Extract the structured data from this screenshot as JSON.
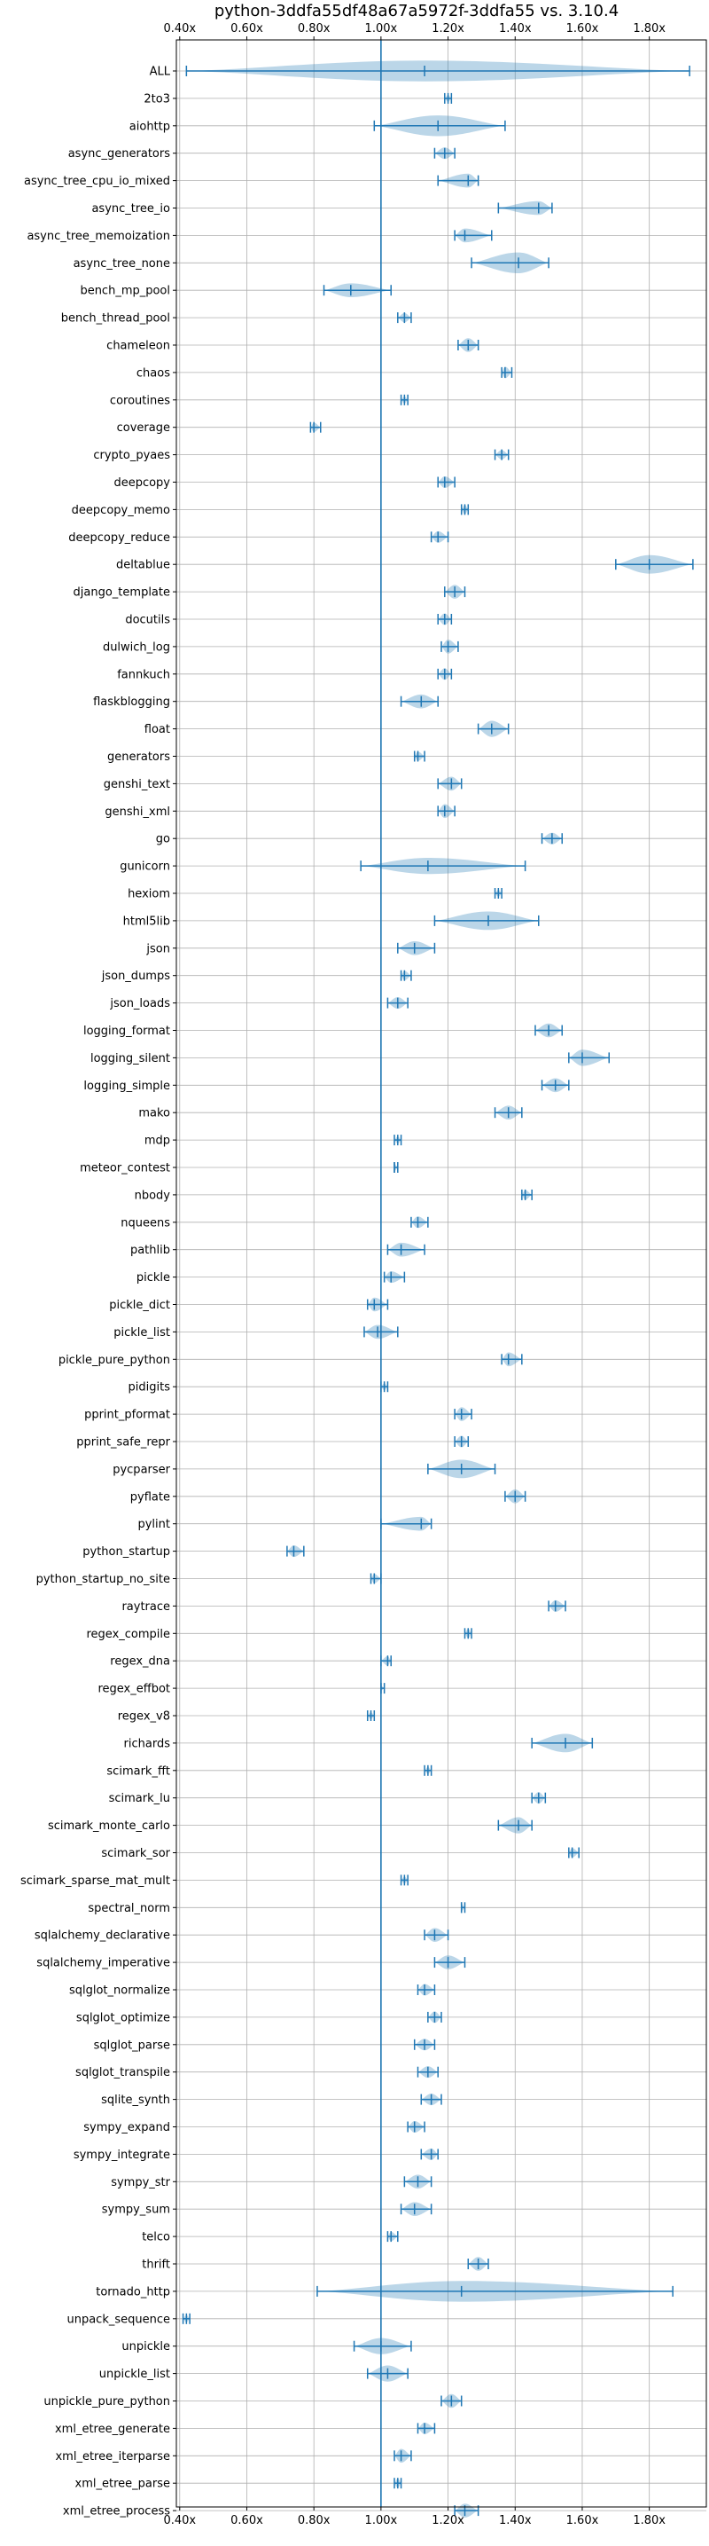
{
  "chart_data": {
    "type": "violin",
    "title": "python-3ddfa55df48a67a5972f-3ddfa55 vs. 3.10.4",
    "xlabel": "",
    "ylabel": "",
    "xlim": [
      0.39,
      1.97
    ],
    "xticks": [
      0.4,
      0.6,
      0.8,
      1.0,
      1.2,
      1.4,
      1.6,
      1.8
    ],
    "xtick_labels": [
      "0.40x",
      "0.60x",
      "0.80x",
      "1.00x",
      "1.20x",
      "1.40x",
      "1.60x",
      "1.80x"
    ],
    "reference_line": 1.0,
    "grid": true,
    "categories": [
      "ALL",
      "2to3",
      "aiohttp",
      "async_generators",
      "async_tree_cpu_io_mixed",
      "async_tree_io",
      "async_tree_memoization",
      "async_tree_none",
      "bench_mp_pool",
      "bench_thread_pool",
      "chameleon",
      "chaos",
      "coroutines",
      "coverage",
      "crypto_pyaes",
      "deepcopy",
      "deepcopy_memo",
      "deepcopy_reduce",
      "deltablue",
      "django_template",
      "docutils",
      "dulwich_log",
      "fannkuch",
      "flaskblogging",
      "float",
      "generators",
      "genshi_text",
      "genshi_xml",
      "go",
      "gunicorn",
      "hexiom",
      "html5lib",
      "json",
      "json_dumps",
      "json_loads",
      "logging_format",
      "logging_silent",
      "logging_simple",
      "mako",
      "mdp",
      "meteor_contest",
      "nbody",
      "nqueens",
      "pathlib",
      "pickle",
      "pickle_dict",
      "pickle_list",
      "pickle_pure_python",
      "pidigits",
      "pprint_pformat",
      "pprint_safe_repr",
      "pycparser",
      "pyflate",
      "pylint",
      "python_startup",
      "python_startup_no_site",
      "raytrace",
      "regex_compile",
      "regex_dna",
      "regex_effbot",
      "regex_v8",
      "richards",
      "scimark_fft",
      "scimark_lu",
      "scimark_monte_carlo",
      "scimark_sor",
      "scimark_sparse_mat_mult",
      "spectral_norm",
      "sqlalchemy_declarative",
      "sqlalchemy_imperative",
      "sqlglot_normalize",
      "sqlglot_optimize",
      "sqlglot_parse",
      "sqlglot_transpile",
      "sqlite_synth",
      "sympy_expand",
      "sympy_integrate",
      "sympy_str",
      "sympy_sum",
      "telco",
      "thrift",
      "tornado_http",
      "unpack_sequence",
      "unpickle",
      "unpickle_list",
      "unpickle_pure_python",
      "xml_etree_generate",
      "xml_etree_iterparse",
      "xml_etree_parse",
      "xml_etree_process"
    ],
    "series": [
      {
        "min": 0.42,
        "max": 1.92,
        "median": 1.13,
        "width": 0.9
      },
      {
        "min": 1.19,
        "max": 1.21,
        "median": 1.2,
        "width": 0.3
      },
      {
        "min": 0.98,
        "max": 1.37,
        "median": 1.17,
        "width": 0.9
      },
      {
        "min": 1.16,
        "max": 1.22,
        "median": 1.19,
        "width": 0.5
      },
      {
        "min": 1.17,
        "max": 1.29,
        "median": 1.26,
        "width": 0.6
      },
      {
        "min": 1.35,
        "max": 1.51,
        "median": 1.47,
        "width": 0.6
      },
      {
        "min": 1.22,
        "max": 1.33,
        "median": 1.25,
        "width": 0.6
      },
      {
        "min": 1.27,
        "max": 1.5,
        "median": 1.41,
        "width": 0.9
      },
      {
        "min": 0.83,
        "max": 1.03,
        "median": 0.91,
        "width": 0.6
      },
      {
        "min": 1.05,
        "max": 1.09,
        "median": 1.07,
        "width": 0.4
      },
      {
        "min": 1.23,
        "max": 1.29,
        "median": 1.26,
        "width": 0.6
      },
      {
        "min": 1.36,
        "max": 1.39,
        "median": 1.37,
        "width": 0.5
      },
      {
        "min": 1.06,
        "max": 1.08,
        "median": 1.07,
        "width": 0.3
      },
      {
        "min": 0.79,
        "max": 0.82,
        "median": 0.8,
        "width": 0.4
      },
      {
        "min": 1.34,
        "max": 1.38,
        "median": 1.36,
        "width": 0.4
      },
      {
        "min": 1.17,
        "max": 1.22,
        "median": 1.19,
        "width": 0.5
      },
      {
        "min": 1.24,
        "max": 1.26,
        "median": 1.25,
        "width": 0.4
      },
      {
        "min": 1.15,
        "max": 1.2,
        "median": 1.17,
        "width": 0.5
      },
      {
        "min": 1.7,
        "max": 1.93,
        "median": 1.8,
        "width": 0.8
      },
      {
        "min": 1.19,
        "max": 1.25,
        "median": 1.22,
        "width": 0.6
      },
      {
        "min": 1.17,
        "max": 1.21,
        "median": 1.19,
        "width": 0.5
      },
      {
        "min": 1.18,
        "max": 1.23,
        "median": 1.2,
        "width": 0.6
      },
      {
        "min": 1.17,
        "max": 1.21,
        "median": 1.19,
        "width": 0.5
      },
      {
        "min": 1.06,
        "max": 1.17,
        "median": 1.12,
        "width": 0.6
      },
      {
        "min": 1.29,
        "max": 1.38,
        "median": 1.33,
        "width": 0.7
      },
      {
        "min": 1.1,
        "max": 1.13,
        "median": 1.11,
        "width": 0.4
      },
      {
        "min": 1.17,
        "max": 1.24,
        "median": 1.21,
        "width": 0.6
      },
      {
        "min": 1.17,
        "max": 1.22,
        "median": 1.19,
        "width": 0.6
      },
      {
        "min": 1.48,
        "max": 1.54,
        "median": 1.51,
        "width": 0.5
      },
      {
        "min": 0.94,
        "max": 1.43,
        "median": 1.14,
        "width": 0.7
      },
      {
        "min": 1.34,
        "max": 1.36,
        "median": 1.35,
        "width": 0.3
      },
      {
        "min": 1.16,
        "max": 1.47,
        "median": 1.32,
        "width": 0.8
      },
      {
        "min": 1.05,
        "max": 1.16,
        "median": 1.1,
        "width": 0.6
      },
      {
        "min": 1.06,
        "max": 1.09,
        "median": 1.07,
        "width": 0.4
      },
      {
        "min": 1.02,
        "max": 1.08,
        "median": 1.05,
        "width": 0.5
      },
      {
        "min": 1.46,
        "max": 1.54,
        "median": 1.5,
        "width": 0.6
      },
      {
        "min": 1.56,
        "max": 1.68,
        "median": 1.6,
        "width": 0.7
      },
      {
        "min": 1.48,
        "max": 1.56,
        "median": 1.52,
        "width": 0.6
      },
      {
        "min": 1.34,
        "max": 1.42,
        "median": 1.38,
        "width": 0.6
      },
      {
        "min": 1.04,
        "max": 1.06,
        "median": 1.05,
        "width": 0.3
      },
      {
        "min": 1.04,
        "max": 1.05,
        "median": 1.04,
        "width": 0.3
      },
      {
        "min": 1.42,
        "max": 1.45,
        "median": 1.43,
        "width": 0.4
      },
      {
        "min": 1.09,
        "max": 1.14,
        "median": 1.11,
        "width": 0.5
      },
      {
        "min": 1.02,
        "max": 1.13,
        "median": 1.06,
        "width": 0.6
      },
      {
        "min": 1.01,
        "max": 1.07,
        "median": 1.03,
        "width": 0.5
      },
      {
        "min": 0.96,
        "max": 1.02,
        "median": 0.98,
        "width": 0.6
      },
      {
        "min": 0.95,
        "max": 1.05,
        "median": 0.99,
        "width": 0.6
      },
      {
        "min": 1.36,
        "max": 1.42,
        "median": 1.38,
        "width": 0.6
      },
      {
        "min": 1.0,
        "max": 1.02,
        "median": 1.01,
        "width": 0.3
      },
      {
        "min": 1.22,
        "max": 1.27,
        "median": 1.24,
        "width": 0.6
      },
      {
        "min": 1.22,
        "max": 1.26,
        "median": 1.24,
        "width": 0.5
      },
      {
        "min": 1.14,
        "max": 1.34,
        "median": 1.24,
        "width": 0.8
      },
      {
        "min": 1.37,
        "max": 1.43,
        "median": 1.4,
        "width": 0.6
      },
      {
        "min": 1.0,
        "max": 1.15,
        "median": 1.12,
        "width": 0.6
      },
      {
        "min": 0.72,
        "max": 0.77,
        "median": 0.74,
        "width": 0.5
      },
      {
        "min": 0.97,
        "max": 1.0,
        "median": 0.98,
        "width": 0.4
      },
      {
        "min": 1.5,
        "max": 1.55,
        "median": 1.52,
        "width": 0.5
      },
      {
        "min": 1.25,
        "max": 1.27,
        "median": 1.26,
        "width": 0.4
      },
      {
        "min": 1.0,
        "max": 1.03,
        "median": 1.02,
        "width": 0.4
      },
      {
        "min": 1.0,
        "max": 1.01,
        "median": 1.0,
        "width": 0.2
      },
      {
        "min": 0.96,
        "max": 0.98,
        "median": 0.97,
        "width": 0.3
      },
      {
        "min": 1.45,
        "max": 1.63,
        "median": 1.55,
        "width": 0.8
      },
      {
        "min": 1.13,
        "max": 1.15,
        "median": 1.14,
        "width": 0.3
      },
      {
        "min": 1.45,
        "max": 1.49,
        "median": 1.47,
        "width": 0.5
      },
      {
        "min": 1.35,
        "max": 1.45,
        "median": 1.41,
        "width": 0.7
      },
      {
        "min": 1.56,
        "max": 1.59,
        "median": 1.57,
        "width": 0.4
      },
      {
        "min": 1.06,
        "max": 1.08,
        "median": 1.07,
        "width": 0.3
      },
      {
        "min": 1.24,
        "max": 1.25,
        "median": 1.24,
        "width": 0.3
      },
      {
        "min": 1.13,
        "max": 1.2,
        "median": 1.16,
        "width": 0.6
      },
      {
        "min": 1.16,
        "max": 1.25,
        "median": 1.2,
        "width": 0.6
      },
      {
        "min": 1.11,
        "max": 1.16,
        "median": 1.13,
        "width": 0.5
      },
      {
        "min": 1.14,
        "max": 1.18,
        "median": 1.16,
        "width": 0.5
      },
      {
        "min": 1.1,
        "max": 1.16,
        "median": 1.13,
        "width": 0.5
      },
      {
        "min": 1.11,
        "max": 1.17,
        "median": 1.14,
        "width": 0.5
      },
      {
        "min": 1.12,
        "max": 1.18,
        "median": 1.15,
        "width": 0.5
      },
      {
        "min": 1.08,
        "max": 1.13,
        "median": 1.1,
        "width": 0.5
      },
      {
        "min": 1.12,
        "max": 1.17,
        "median": 1.15,
        "width": 0.5
      },
      {
        "min": 1.07,
        "max": 1.15,
        "median": 1.11,
        "width": 0.6
      },
      {
        "min": 1.06,
        "max": 1.15,
        "median": 1.1,
        "width": 0.6
      },
      {
        "min": 1.02,
        "max": 1.05,
        "median": 1.03,
        "width": 0.4
      },
      {
        "min": 1.26,
        "max": 1.32,
        "median": 1.29,
        "width": 0.6
      },
      {
        "min": 0.81,
        "max": 1.87,
        "median": 1.24,
        "width": 0.9
      },
      {
        "min": 0.41,
        "max": 0.43,
        "median": 0.42,
        "width": 0.3
      },
      {
        "min": 0.92,
        "max": 1.09,
        "median": 1.0,
        "width": 0.7
      },
      {
        "min": 0.96,
        "max": 1.08,
        "median": 1.02,
        "width": 0.7
      },
      {
        "min": 1.18,
        "max": 1.24,
        "median": 1.21,
        "width": 0.6
      },
      {
        "min": 1.11,
        "max": 1.16,
        "median": 1.13,
        "width": 0.5
      },
      {
        "min": 1.04,
        "max": 1.09,
        "median": 1.06,
        "width": 0.6
      },
      {
        "min": 1.04,
        "max": 1.06,
        "median": 1.05,
        "width": 0.4
      },
      {
        "min": 1.22,
        "max": 1.29,
        "median": 1.25,
        "width": 0.6
      }
    ]
  }
}
